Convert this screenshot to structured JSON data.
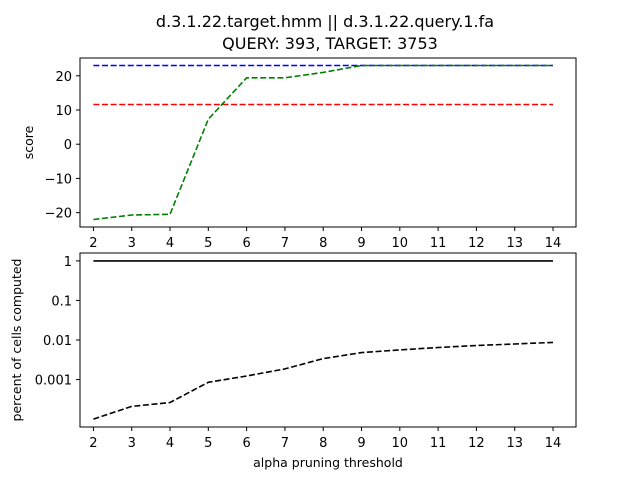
{
  "title_line1": "d.3.1.22.target.hmm || d.3.1.22.query.1.fa",
  "title_line2": "QUERY: 393, TARGET: 3753",
  "chart_data": [
    {
      "type": "line",
      "ylabel": "score",
      "xlabel": "",
      "xlim": [
        1.65,
        14.6
      ],
      "ylim": [
        -24.2,
        25.2
      ],
      "xticks": [
        2,
        3,
        4,
        5,
        6,
        7,
        8,
        9,
        10,
        11,
        12,
        13,
        14
      ],
      "yticks": [
        20,
        10,
        0,
        -10,
        -20
      ],
      "ytick_labels": [
        "20",
        "10",
        "0",
        "−10",
        "−20"
      ],
      "grid": false,
      "series": [
        {
          "color": "#0000ff",
          "dash": "dashed",
          "x": [
            2,
            3,
            4,
            5,
            6,
            7,
            8,
            9,
            10,
            11,
            12,
            13,
            14
          ],
          "y": [
            23,
            23,
            23,
            23,
            23,
            23,
            23,
            23,
            23,
            23,
            23,
            23,
            23
          ]
        },
        {
          "color": "#ff0000",
          "dash": "dashed",
          "x": [
            2,
            3,
            4,
            5,
            6,
            7,
            8,
            9,
            10,
            11,
            12,
            13,
            14
          ],
          "y": [
            11.6,
            11.6,
            11.6,
            11.6,
            11.6,
            11.6,
            11.6,
            11.6,
            11.6,
            11.6,
            11.6,
            11.6,
            11.6
          ]
        },
        {
          "color": "#008000",
          "dash": "dashed",
          "x": [
            2,
            3,
            4,
            5,
            6,
            7,
            8,
            9,
            10,
            11,
            12,
            13,
            14
          ],
          "y": [
            -22,
            -20.7,
            -20.5,
            7.3,
            19.4,
            19.4,
            21,
            23,
            23,
            23,
            23,
            23,
            23
          ]
        }
      ]
    },
    {
      "type": "line",
      "ylabel": "percent of cells computed",
      "xlabel": "alpha pruning threshold",
      "yscale": "log",
      "xlim": [
        1.65,
        14.6
      ],
      "ylim_log10": [
        -4.2,
        0.2
      ],
      "xticks": [
        2,
        3,
        4,
        5,
        6,
        7,
        8,
        9,
        10,
        11,
        12,
        13,
        14
      ],
      "yticks": [
        1,
        0.1,
        0.01,
        0.001
      ],
      "ytick_labels": [
        "1",
        "0.1",
        "0.01",
        "0.001"
      ],
      "grid": false,
      "series": [
        {
          "color": "#000000",
          "dash": "solid",
          "x": [
            2,
            3,
            4,
            5,
            6,
            7,
            8,
            9,
            10,
            11,
            12,
            13,
            14
          ],
          "y": [
            1,
            1,
            1,
            1,
            1,
            1,
            1,
            1,
            1,
            1,
            1,
            1,
            1
          ]
        },
        {
          "color": "#000000",
          "dash": "dashed",
          "x": [
            2,
            3,
            4,
            5,
            6,
            7,
            8,
            9,
            10,
            11,
            12,
            13,
            14
          ],
          "y": [
            0.0001,
            0.000209,
            0.000262,
            0.000851,
            0.00123,
            0.00186,
            0.00339,
            0.00479,
            0.00562,
            0.00646,
            0.00724,
            0.00794,
            0.00871
          ]
        }
      ]
    }
  ]
}
